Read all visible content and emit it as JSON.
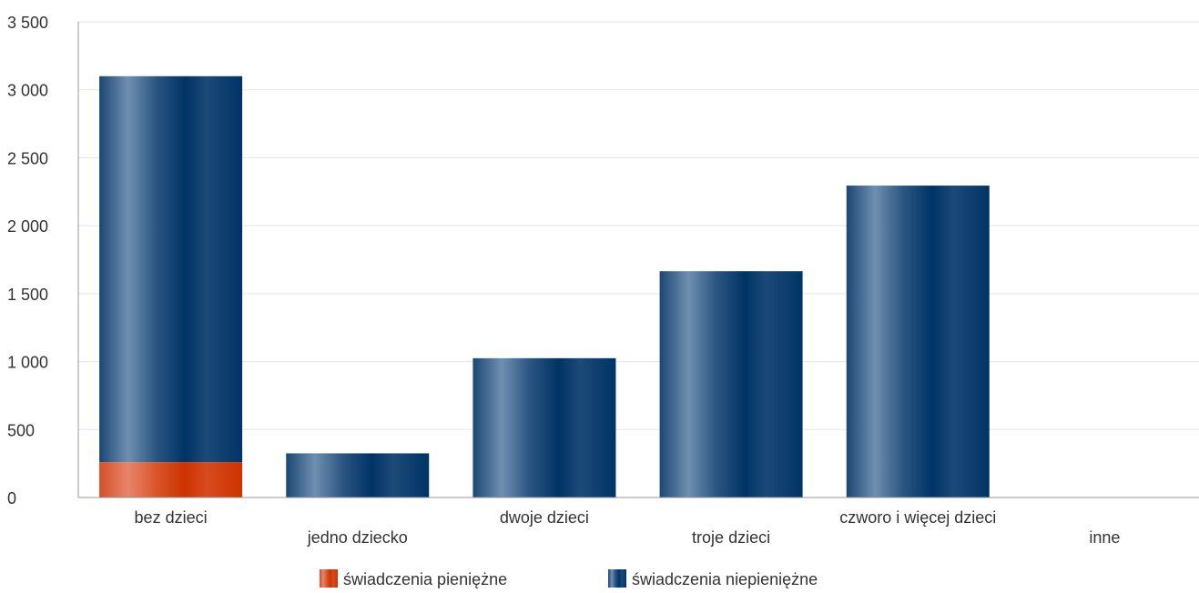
{
  "chart_data": {
    "type": "bar",
    "stacked": true,
    "categories": [
      "bez dzieci",
      "jedno dziecko",
      "dwoje dzieci",
      "troje dzieci",
      "czworo i więcej dzieci",
      "inne"
    ],
    "series": [
      {
        "name": "świadczenia pieniężne",
        "values": [
          260,
          0,
          0,
          0,
          0,
          0
        ]
      },
      {
        "name": "świadczenia niepieniężne",
        "values": [
          2840,
          325,
          1025,
          1665,
          2295,
          0
        ]
      }
    ],
    "y_ticks": [
      "0",
      "500",
      "1 000",
      "1 500",
      "2 000",
      "2 500",
      "3 000",
      "3 500"
    ],
    "ylim": [
      0,
      3500
    ],
    "ytick_step": 500,
    "grid": true,
    "legend_position": "bottom-center",
    "title": "",
    "xlabel": "",
    "ylabel": "",
    "colors": {
      "pieniezne_dark": "#cc3300",
      "pieniezne_light": "#e8846a",
      "niepieniezne_dark": "#003366",
      "niepieniezne_light": "#6f8fb0",
      "grid": "#e6e6e6",
      "axis": "#999999"
    }
  }
}
